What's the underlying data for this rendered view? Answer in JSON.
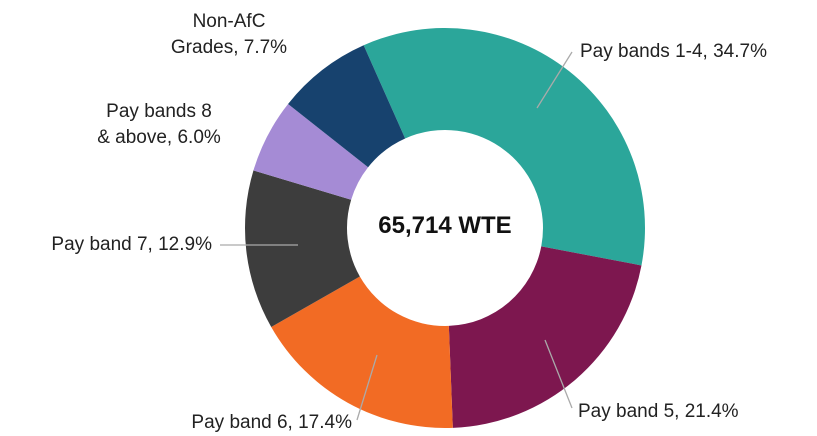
{
  "chart_data": {
    "type": "donut",
    "center_label": "65,714 WTE",
    "categories": [
      "Pay bands 1-4, 34.7%",
      "Pay band 5, 21.4%",
      "Pay band 6, 17.4%",
      "Pay band 7, 12.9%",
      "Pay bands 8\n& above, 6.0%",
      "Non-AfC\nGrades, 7.7%"
    ],
    "values": [
      34.7,
      21.4,
      17.4,
      12.9,
      6.0,
      7.7
    ],
    "colors": [
      "#2ba69a",
      "#7d174f",
      "#f26b24",
      "#3d3d3d",
      "#a58bd5",
      "#17426e"
    ]
  }
}
